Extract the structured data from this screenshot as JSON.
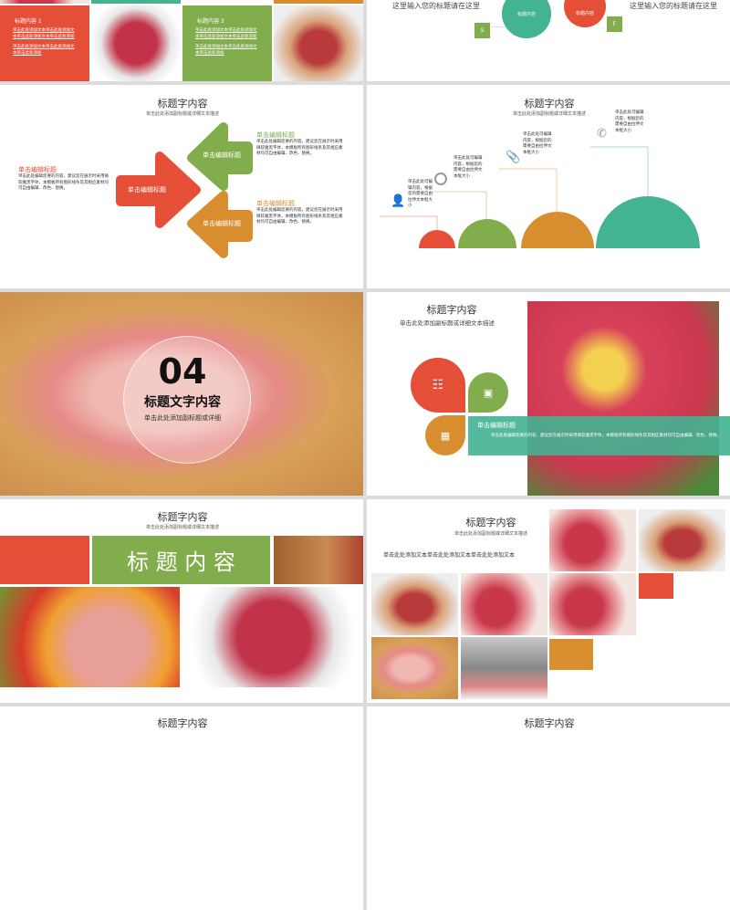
{
  "colors": {
    "red": "#e54f38",
    "green": "#82ad4c",
    "orange": "#d88e2f",
    "teal": "#43b392"
  },
  "slide_top_left": {
    "box1": {
      "title": "标题内容 1",
      "para1": "单击此处添加文本单击此处添加文本单击此处添加文本单击此处添加",
      "para2": "单击此处添加文本单击此处添加文本单击此处添加"
    },
    "box3": {
      "title": "标题内容 3",
      "para1": "单击此处添加文本单击此处添加文本单击此处添加文本单击此处添加",
      "para2": "单击此处添加文本单击此处添加文本单击此处添加"
    }
  },
  "slide_top_right": {
    "left_text": "这里输入您的标题请在这里",
    "right_text": "这里输入您的标题请在这里",
    "circle1": "标题内容",
    "circle2": "标题内容",
    "box_s": "S",
    "box_f": "F"
  },
  "slide_arrows": {
    "title": "标题字内容",
    "subtitle": "单击此处添加副标题或详细文本描述",
    "arrow_label": "单击编辑标题",
    "left": {
      "heading": "单击编辑标题",
      "body": "单击此处编辑您要的内容，建议您在展示时采用微软雅黑字体，本模板所有图形线条及其相应素材均可自由编辑、改色、替换。"
    },
    "right_top": {
      "heading": "单击编辑标题",
      "body": "单击此处编辑您要的内容，建议您在展示时采用微软雅黑字体，本模板所有图形线条及其相应素材均可自由编辑、改色、替换。"
    },
    "right_bottom": {
      "heading": "单击编辑标题",
      "body": "单击此处编辑您要的内容，建议您在展示时采用微软雅黑字体，本模板所有图形线条及其相应素材均可自由编辑、改色、替换。"
    }
  },
  "slide_semicircles": {
    "title": "标题字内容",
    "subtitle": "单击此处添加副标题或详细文本描述",
    "items": [
      {
        "icon": "person-icon",
        "text": "单击此处可编辑内容，根据您的需要自由拉伸文本框大小"
      },
      {
        "icon": "clock-icon",
        "text": "单击此处可编辑内容，根据您的需要自由拉伸文本框大小"
      },
      {
        "icon": "paperclip-icon",
        "text": "单击此处可编辑内容，根据您的需要自由拉伸文本框大小"
      },
      {
        "icon": "phone-icon",
        "text": "单击此处可编辑内容，根据您的需要自由拉伸文本框大小"
      }
    ]
  },
  "slide_section": {
    "number": "04",
    "title": "标题文字内容",
    "subtitle": "单击此处添加副标题或详细"
  },
  "slide_petals": {
    "title": "标题字内容",
    "subtitle": "单击此处添加副标题或详细文本描述",
    "banner_heading": "单击编辑标题",
    "banner_body": "单击此处编辑您要的内容，建议您在展示时采用微软雅黑字体，本模板所有图形线条及其相应素材均可自由编辑、改色、替换。",
    "icons": [
      "equalizer-icon",
      "monitor-icon",
      "easel-icon"
    ]
  },
  "slide_banner": {
    "title": "标题字内容",
    "subtitle": "单击此处添加副标题或详细文本描述",
    "banner": "标 题 内 容"
  },
  "slide_gallery": {
    "title": "标题字内容",
    "subtitle": "单击此处添加副标题或详细文本描述",
    "body": "单击此处添加文本单击此处添加文本单击此处添加文本"
  },
  "bottom_row": {
    "left_title": "标题字内容",
    "right_title": "标题字内容"
  }
}
